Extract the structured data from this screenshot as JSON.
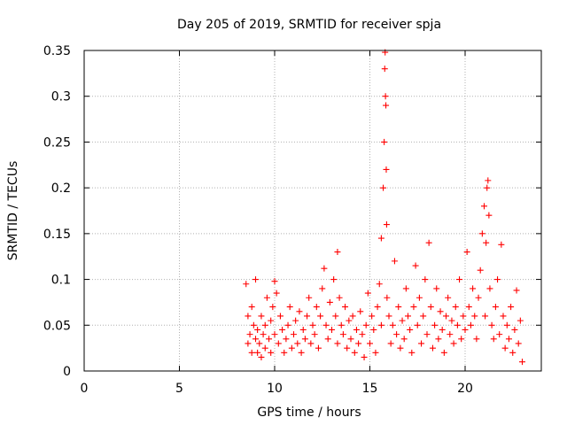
{
  "chart_data": {
    "type": "scatter",
    "title": "Day 205 of 2019, SRMTID for receiver spja",
    "xlabel": "GPS time / hours",
    "ylabel": "SRMTID / TECUs",
    "xlim": [
      0,
      24
    ],
    "ylim": [
      0,
      0.35
    ],
    "xticks": [
      0,
      5,
      10,
      15,
      20
    ],
    "xtick_labels": [
      "0",
      "5",
      "10",
      "15",
      "20"
    ],
    "yticks": [
      0,
      0.05,
      0.1,
      0.15,
      0.2,
      0.25,
      0.3,
      0.35
    ],
    "ytick_labels": [
      "0",
      "0.05",
      "0.1",
      "0.15",
      "0.2",
      "0.25",
      "0.3",
      "0.35"
    ],
    "grid": true,
    "marker": "+",
    "color": "#ff0000",
    "series": [
      {
        "name": "SRMTID",
        "points": [
          [
            8.5,
            0.095
          ],
          [
            8.6,
            0.06
          ],
          [
            8.6,
            0.03
          ],
          [
            8.7,
            0.04
          ],
          [
            8.8,
            0.02
          ],
          [
            8.8,
            0.07
          ],
          [
            8.9,
            0.05
          ],
          [
            9.0,
            0.035
          ],
          [
            9.0,
            0.1
          ],
          [
            9.1,
            0.02
          ],
          [
            9.1,
            0.045
          ],
          [
            9.2,
            0.03
          ],
          [
            9.3,
            0.06
          ],
          [
            9.3,
            0.015
          ],
          [
            9.4,
            0.04
          ],
          [
            9.5,
            0.025
          ],
          [
            9.5,
            0.05
          ],
          [
            9.6,
            0.08
          ],
          [
            9.7,
            0.035
          ],
          [
            9.8,
            0.055
          ],
          [
            9.8,
            0.02
          ],
          [
            9.9,
            0.07
          ],
          [
            10.0,
            0.098
          ],
          [
            10.0,
            0.04
          ],
          [
            10.1,
            0.085
          ],
          [
            10.2,
            0.03
          ],
          [
            10.3,
            0.06
          ],
          [
            10.4,
            0.045
          ],
          [
            10.5,
            0.02
          ],
          [
            10.6,
            0.035
          ],
          [
            10.7,
            0.05
          ],
          [
            10.8,
            0.07
          ],
          [
            10.9,
            0.025
          ],
          [
            11.0,
            0.04
          ],
          [
            11.1,
            0.055
          ],
          [
            11.2,
            0.03
          ],
          [
            11.3,
            0.065
          ],
          [
            11.4,
            0.02
          ],
          [
            11.5,
            0.045
          ],
          [
            11.6,
            0.035
          ],
          [
            11.7,
            0.06
          ],
          [
            11.8,
            0.08
          ],
          [
            11.9,
            0.03
          ],
          [
            12.0,
            0.05
          ],
          [
            12.1,
            0.04
          ],
          [
            12.2,
            0.07
          ],
          [
            12.3,
            0.025
          ],
          [
            12.4,
            0.06
          ],
          [
            12.5,
            0.09
          ],
          [
            12.6,
            0.112
          ],
          [
            12.7,
            0.05
          ],
          [
            12.8,
            0.035
          ],
          [
            12.9,
            0.075
          ],
          [
            13.0,
            0.045
          ],
          [
            13.1,
            0.1
          ],
          [
            13.2,
            0.06
          ],
          [
            13.3,
            0.13
          ],
          [
            13.3,
            0.03
          ],
          [
            13.4,
            0.08
          ],
          [
            13.5,
            0.05
          ],
          [
            13.6,
            0.04
          ],
          [
            13.7,
            0.07
          ],
          [
            13.8,
            0.025
          ],
          [
            13.9,
            0.055
          ],
          [
            14.0,
            0.035
          ],
          [
            14.1,
            0.06
          ],
          [
            14.2,
            0.02
          ],
          [
            14.3,
            0.045
          ],
          [
            14.4,
            0.03
          ],
          [
            14.5,
            0.065
          ],
          [
            14.6,
            0.04
          ],
          [
            14.7,
            0.015
          ],
          [
            14.8,
            0.05
          ],
          [
            14.9,
            0.085
          ],
          [
            15.0,
            0.03
          ],
          [
            15.1,
            0.06
          ],
          [
            15.2,
            0.045
          ],
          [
            15.3,
            0.02
          ],
          [
            15.4,
            0.07
          ],
          [
            15.5,
            0.095
          ],
          [
            15.6,
            0.145
          ],
          [
            15.6,
            0.05
          ],
          [
            15.7,
            0.2
          ],
          [
            15.75,
            0.25
          ],
          [
            15.78,
            0.33
          ],
          [
            15.8,
            0.348
          ],
          [
            15.82,
            0.3
          ],
          [
            15.84,
            0.29
          ],
          [
            15.86,
            0.22
          ],
          [
            15.88,
            0.16
          ],
          [
            15.9,
            0.08
          ],
          [
            16.0,
            0.06
          ],
          [
            16.1,
            0.03
          ],
          [
            16.2,
            0.05
          ],
          [
            16.3,
            0.12
          ],
          [
            16.4,
            0.04
          ],
          [
            16.5,
            0.07
          ],
          [
            16.6,
            0.025
          ],
          [
            16.7,
            0.055
          ],
          [
            16.8,
            0.035
          ],
          [
            16.9,
            0.09
          ],
          [
            17.0,
            0.06
          ],
          [
            17.1,
            0.045
          ],
          [
            17.2,
            0.02
          ],
          [
            17.3,
            0.07
          ],
          [
            17.4,
            0.115
          ],
          [
            17.5,
            0.05
          ],
          [
            17.6,
            0.08
          ],
          [
            17.7,
            0.03
          ],
          [
            17.8,
            0.06
          ],
          [
            17.9,
            0.1
          ],
          [
            18.0,
            0.04
          ],
          [
            18.1,
            0.14
          ],
          [
            18.2,
            0.07
          ],
          [
            18.3,
            0.025
          ],
          [
            18.4,
            0.05
          ],
          [
            18.5,
            0.09
          ],
          [
            18.6,
            0.035
          ],
          [
            18.7,
            0.065
          ],
          [
            18.8,
            0.045
          ],
          [
            18.9,
            0.02
          ],
          [
            19.0,
            0.06
          ],
          [
            19.1,
            0.08
          ],
          [
            19.2,
            0.04
          ],
          [
            19.3,
            0.055
          ],
          [
            19.4,
            0.03
          ],
          [
            19.5,
            0.07
          ],
          [
            19.6,
            0.05
          ],
          [
            19.7,
            0.1
          ],
          [
            19.8,
            0.035
          ],
          [
            19.9,
            0.06
          ],
          [
            20.0,
            0.045
          ],
          [
            20.1,
            0.13
          ],
          [
            20.2,
            0.07
          ],
          [
            20.3,
            0.05
          ],
          [
            20.4,
            0.09
          ],
          [
            20.5,
            0.06
          ],
          [
            20.6,
            0.035
          ],
          [
            20.7,
            0.08
          ],
          [
            20.8,
            0.11
          ],
          [
            20.9,
            0.15
          ],
          [
            21.0,
            0.18
          ],
          [
            21.05,
            0.06
          ],
          [
            21.1,
            0.14
          ],
          [
            21.15,
            0.2
          ],
          [
            21.2,
            0.208
          ],
          [
            21.25,
            0.17
          ],
          [
            21.3,
            0.09
          ],
          [
            21.4,
            0.05
          ],
          [
            21.5,
            0.035
          ],
          [
            21.6,
            0.07
          ],
          [
            21.7,
            0.1
          ],
          [
            21.8,
            0.04
          ],
          [
            21.9,
            0.138
          ],
          [
            22.0,
            0.06
          ],
          [
            22.1,
            0.025
          ],
          [
            22.2,
            0.05
          ],
          [
            22.3,
            0.035
          ],
          [
            22.4,
            0.07
          ],
          [
            22.5,
            0.02
          ],
          [
            22.6,
            0.045
          ],
          [
            22.7,
            0.088
          ],
          [
            22.8,
            0.03
          ],
          [
            22.9,
            0.055
          ],
          [
            23.0,
            0.01
          ]
        ]
      }
    ]
  }
}
